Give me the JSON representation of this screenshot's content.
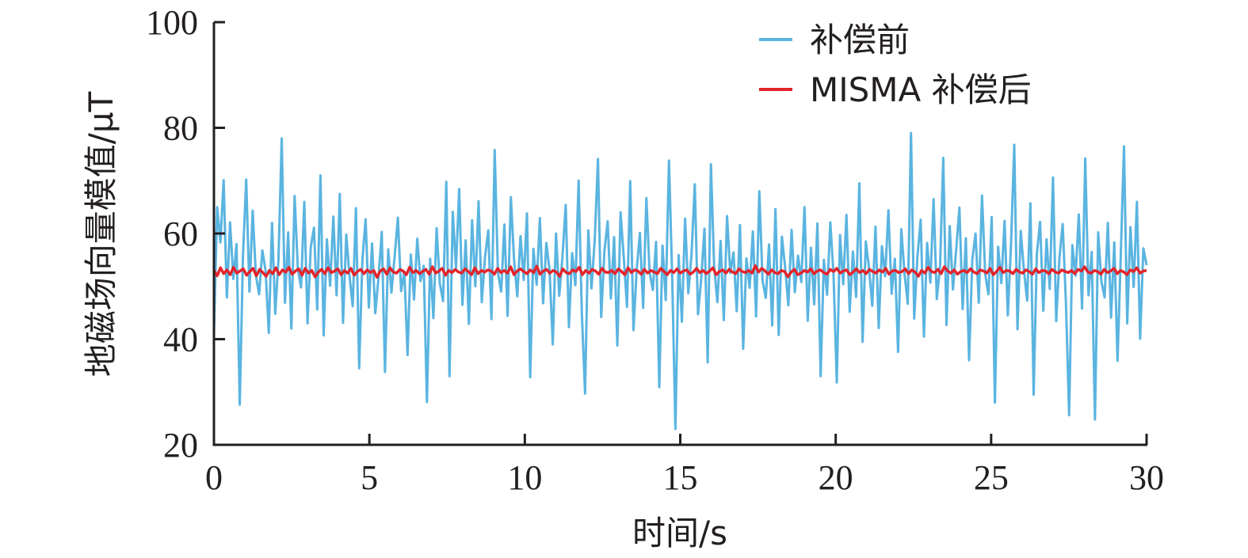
{
  "chart_data": {
    "type": "line",
    "title": "",
    "xlabel": "时间/s",
    "ylabel": "地磁场向量模值/μT",
    "xlim": [
      0,
      30
    ],
    "ylim": [
      20,
      100
    ],
    "x_ticks": [
      "0",
      "5",
      "10",
      "15",
      "20",
      "25",
      "30"
    ],
    "y_ticks": [
      "20",
      "40",
      "60",
      "80",
      "100"
    ],
    "grid": false,
    "legend_position": "top-right",
    "series": [
      {
        "name": "补偿前",
        "color": "#5ab4e0",
        "x_start": 0,
        "x_end": 30,
        "values": [
          41.0,
          65.0,
          58.3,
          70.1,
          47.9,
          62.1,
          51.4,
          58.0,
          27.6,
          55.9,
          70.2,
          49.0,
          64.3,
          52.1,
          48.5,
          56.8,
          53.0,
          41.2,
          62.0,
          44.8,
          55.1,
          78.0,
          46.9,
          60.2,
          42.0,
          67.1,
          53.3,
          49.8,
          66.0,
          43.0,
          57.4,
          61.1,
          45.6,
          71.0,
          40.7,
          58.9,
          50.1,
          63.2,
          48.3,
          67.5,
          43.1,
          59.8,
          52.0,
          46.2,
          64.8,
          34.5,
          55.0,
          62.7,
          46.0,
          58.1,
          44.9,
          51.7,
          60.3,
          33.8,
          57.0,
          48.8,
          55.7,
          63.0,
          49.1,
          52.8,
          37.0,
          56.0,
          47.5,
          59.0,
          51.0,
          53.9,
          28.1,
          55.2,
          44.0,
          61.0,
          50.5,
          47.2,
          69.8,
          33.0,
          64.1,
          53.5,
          68.4,
          46.5,
          58.7,
          42.9,
          62.5,
          50.0,
          66.1,
          47.0,
          55.5,
          60.6,
          43.8,
          75.8,
          52.6,
          49.0,
          61.7,
          44.4,
          66.9,
          55.0,
          48.1,
          59.5,
          51.2,
          63.8,
          32.8,
          57.1,
          50.3,
          62.9,
          46.8,
          58.2,
          53.1,
          39.0,
          60.0,
          48.2,
          55.6,
          65.4,
          42.3,
          56.3,
          50.2,
          70.0,
          45.0,
          29.7,
          60.6,
          49.6,
          58.8,
          74.1,
          44.2,
          56.7,
          62.3,
          47.7,
          59.3,
          38.8,
          64.0,
          55.4,
          46.1,
          69.9,
          41.7,
          53.2,
          60.1,
          45.9,
          66.7,
          52.7,
          49.3,
          58.4,
          30.9,
          57.7,
          47.4,
          73.8,
          51.8,
          23.0,
          55.9,
          43.3,
          62.8,
          48.7,
          56.1,
          69.3,
          44.7,
          51.5,
          60.9,
          35.6,
          73.1,
          53.8,
          47.0,
          58.6,
          43.6,
          63.3,
          52.5,
          56.4,
          45.3,
          61.6,
          38.2,
          55.3,
          49.7,
          60.4,
          44.3,
          68.0,
          51.1,
          47.8,
          57.9,
          42.6,
          64.6,
          40.8,
          59.4,
          53.6,
          46.4,
          60.7,
          48.9,
          55.8,
          50.8,
          65.0,
          43.5,
          57.3,
          46.6,
          61.9,
          33.0,
          55.0,
          48.4,
          62.1,
          52.2,
          31.8,
          59.7,
          50.4,
          63.5,
          45.2,
          56.6,
          48.0,
          69.5,
          39.5,
          58.5,
          53.4,
          46.3,
          61.3,
          42.1,
          57.6,
          51.9,
          64.4,
          48.6,
          55.2,
          37.6,
          60.8,
          52.4,
          46.7,
          79.0,
          43.9,
          55.7,
          62.6,
          40.5,
          58.2,
          50.7,
          66.5,
          47.6,
          53.7,
          74.3,
          42.7,
          61.4,
          49.4,
          56.9,
          64.9,
          45.7,
          59.1,
          36.0,
          55.1,
          60.0,
          46.9,
          67.2,
          52.3,
          48.5,
          63.1,
          28.0,
          57.5,
          50.6,
          62.4,
          44.5,
          58.0,
          76.8,
          41.9,
          60.5,
          53.0,
          47.3,
          65.7,
          29.5,
          56.2,
          62.2,
          45.4,
          58.9,
          49.5,
          70.6,
          43.4,
          55.4,
          61.8,
          47.1,
          25.6,
          57.8,
          52.0,
          63.6,
          45.8,
          74.2,
          48.3,
          56.5,
          24.8,
          60.2,
          50.9,
          47.9,
          62.0,
          44.1,
          58.3,
          35.9,
          55.8,
          76.5,
          43.0,
          61.2,
          49.9,
          66.0,
          40.1,
          57.2,
          54.0
        ]
      },
      {
        "name": "MISMA 补偿后",
        "color": "#e2242b",
        "x_start": 0,
        "x_end": 30,
        "values": [
          53.0,
          52.0,
          53.5,
          52.4,
          53.1,
          52.2,
          53.6,
          52.5,
          52.9,
          53.3,
          52.1,
          52.8,
          53.4,
          52.0,
          53.2,
          52.6,
          51.9,
          53.0,
          52.4,
          53.5,
          52.2,
          53.1,
          52.7,
          53.6,
          52.3,
          52.9,
          53.3,
          52.1,
          53.4,
          52.5,
          53.0,
          51.8,
          52.7,
          53.2,
          52.4,
          53.5,
          52.6,
          52.9,
          53.3,
          52.2,
          53.0,
          52.5,
          53.4,
          52.1,
          52.8,
          53.2,
          52.4,
          53.1,
          52.6,
          53.0,
          51.7,
          52.9,
          53.3,
          52.3,
          53.5,
          52.7,
          52.5,
          53.2,
          52.9,
          52.2,
          53.6,
          52.6,
          53.0,
          52.4,
          52.8,
          53.2,
          52.3,
          53.7,
          52.5,
          52.9,
          53.4,
          52.1,
          53.0,
          52.6,
          53.2,
          52.7,
          52.5,
          53.3,
          52.8,
          52.2,
          53.5,
          52.4,
          53.0,
          52.7,
          53.1,
          52.9,
          52.3,
          53.4,
          52.6,
          53.0,
          52.5,
          53.7,
          52.2,
          52.9,
          53.3,
          52.8,
          52.4,
          53.1,
          52.6,
          53.8,
          52.3,
          52.9,
          53.2,
          52.5,
          53.0,
          52.7,
          51.9,
          53.3,
          52.6,
          52.4,
          53.1,
          52.8,
          53.6,
          52.2,
          53.0,
          52.5,
          53.2,
          52.9,
          52.3,
          53.4,
          52.7,
          52.6,
          53.0,
          52.4,
          53.3,
          52.8,
          52.2,
          53.5,
          52.6,
          53.1,
          52.9,
          52.3,
          53.2,
          52.5,
          53.0,
          52.7,
          52.4,
          53.4,
          52.8,
          52.2,
          53.0,
          52.6,
          53.3,
          52.5,
          52.9,
          53.1,
          52.3,
          52.7,
          53.4,
          52.6,
          53.0,
          52.4,
          52.9,
          53.5,
          52.2,
          52.8,
          53.1,
          52.5,
          53.2,
          52.7,
          52.4,
          53.3,
          52.8,
          52.6,
          53.0,
          52.5,
          53.9,
          52.7,
          53.4,
          52.9,
          52.3,
          53.1,
          52.6,
          52.4,
          53.0,
          52.8,
          51.8,
          52.7,
          53.2,
          52.2,
          52.5,
          53.0,
          52.7,
          53.3,
          52.4,
          52.9,
          53.1,
          52.6,
          52.3,
          53.2,
          52.8,
          53.4,
          52.5,
          52.9,
          53.1,
          52.2,
          52.7,
          53.3,
          52.6,
          53.0,
          52.4,
          53.2,
          52.8,
          52.5,
          53.1,
          52.7,
          53.4,
          52.3,
          52.9,
          53.0,
          52.6,
          52.8,
          53.3,
          52.4,
          53.1,
          52.7,
          51.9,
          53.0,
          52.5,
          53.6,
          52.8,
          52.6,
          53.2,
          52.4,
          53.7,
          52.9,
          52.5,
          53.1,
          52.3,
          52.8,
          53.0,
          52.6,
          53.3,
          52.7,
          52.4,
          53.1,
          52.9,
          52.5,
          53.4,
          52.2,
          52.8,
          53.6,
          52.6,
          53.0,
          52.9,
          52.4,
          53.2,
          52.7,
          52.5,
          53.1,
          52.8,
          52.3,
          53.3,
          52.6,
          53.0,
          52.9,
          52.4,
          53.2,
          52.7,
          52.5,
          53.1,
          52.8,
          52.6,
          53.0,
          52.4,
          53.2,
          52.9,
          53.7,
          52.7,
          52.5,
          53.0,
          52.8,
          52.3,
          53.2,
          52.6,
          52.9,
          53.4,
          52.4,
          53.0,
          52.7,
          52.2,
          53.1,
          52.8,
          53.5,
          52.5,
          52.9,
          53.0
        ]
      }
    ]
  }
}
